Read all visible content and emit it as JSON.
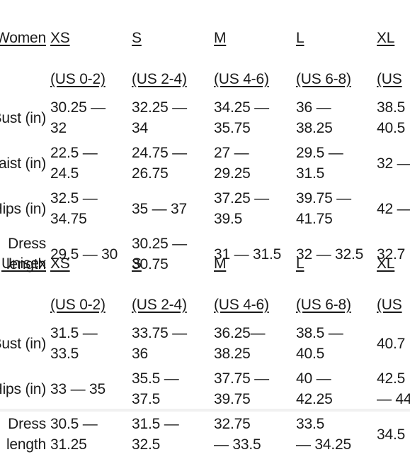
{
  "tables": [
    {
      "category": "Women",
      "sizes": [
        {
          "code": "XS",
          "us": "(US 0-2)"
        },
        {
          "code": "S",
          "us": "(US 2-4)"
        },
        {
          "code": "M",
          "us": "(US 4-6)"
        },
        {
          "code": "L",
          "us": "(US 6-8)"
        },
        {
          "code": "XL",
          "us": "(US"
        }
      ],
      "rows": [
        {
          "label": "Bust (in)",
          "values": [
            "30.25 —\n32",
            "32.25 —\n34",
            "34.25 —\n35.75",
            "36 —\n38.25",
            "38.5\n40.5"
          ]
        },
        {
          "label": "Waist (in)",
          "values": [
            "22.5 —\n24.5",
            "24.75 —\n26.75",
            "27 —\n29.25",
            "29.5 —\n31.5",
            "32 —"
          ]
        },
        {
          "label": "Hips (in)",
          "values": [
            "32.5 —\n34.75",
            "35 — 37",
            "37.25 —\n39.5",
            "39.75 —\n41.75",
            "42 —"
          ]
        },
        {
          "label": "Dress length",
          "values": [
            "29.5 — 30",
            "30.25 —\n30.75",
            "31 — 31.5",
            "32 — 32.5",
            "32.7"
          ]
        }
      ]
    },
    {
      "category": "Unisex",
      "sizes": [
        {
          "code": "XS",
          "us": "(US 0-2)"
        },
        {
          "code": "S",
          "us": "(US 2-4)"
        },
        {
          "code": "M",
          "us": "(US 4-6)"
        },
        {
          "code": "L",
          "us": "(US 6-8)"
        },
        {
          "code": "XL",
          "us": "(US"
        }
      ],
      "rows": [
        {
          "label": "Bust (in)",
          "values": [
            "31.5 —\n33.5",
            "33.75 —\n36",
            "36.25—\n38.25",
            "38.5 —\n40.5",
            "40.7"
          ]
        },
        {
          "label": "Hips (in)",
          "values": [
            "33 — 35",
            "35.5 —\n37.5",
            "37.75 —\n39.75",
            "40 —\n42.25",
            "42.5\n— 44"
          ]
        },
        {
          "label": "Dress length",
          "values": [
            "30.5 —\n31.25",
            "31.5 —\n32.5",
            "32.75\n— 33.5",
            "33.5\n— 34.25",
            "34.5"
          ]
        }
      ]
    }
  ]
}
